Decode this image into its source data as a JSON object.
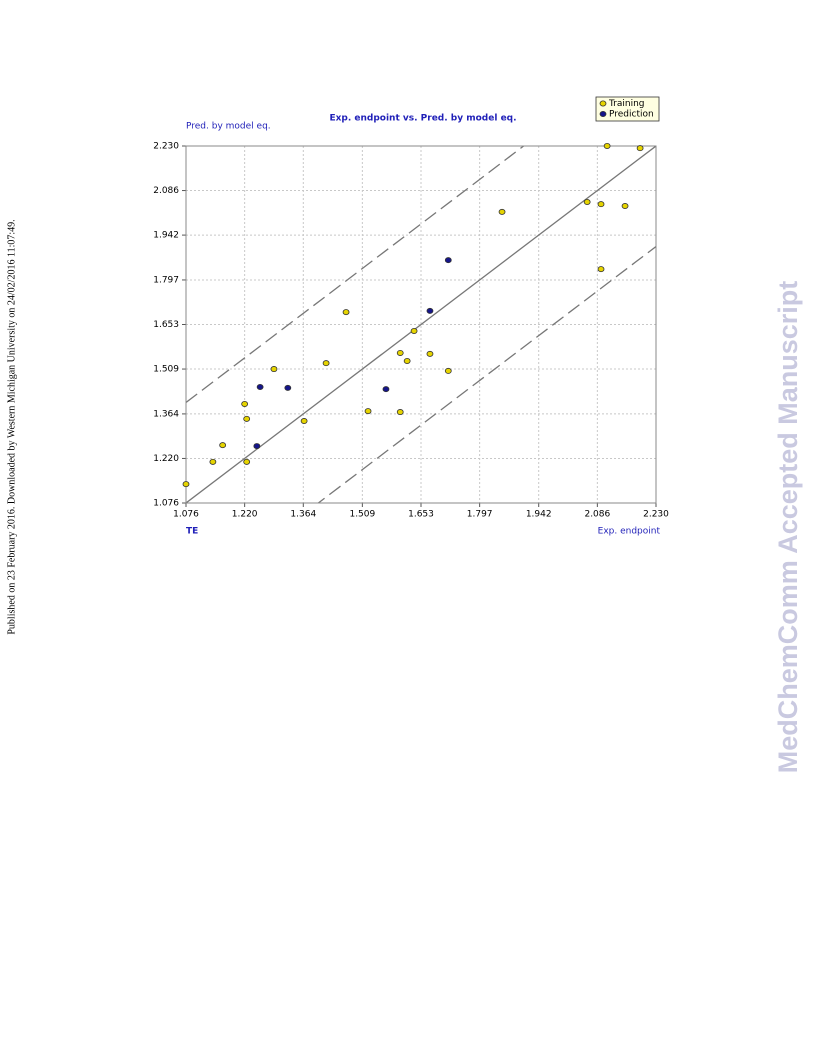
{
  "side_note": "Published on 23 February 2016. Downloaded by Western Michigan University on 24/02/2016 11:07:49.",
  "watermark": "MedChemComm Accepted Manuscript",
  "chart_data": {
    "type": "scatter",
    "title": "Exp. endpoint vs. Pred. by model eq.",
    "y_label": "Pred. by model eq.",
    "x_label": "Exp. endpoint",
    "corner_label": "TE",
    "xlim": [
      1.076,
      2.23
    ],
    "ylim": [
      1.076,
      2.23
    ],
    "xticks": [
      1.076,
      {
        "value": 1.22,
        "label": "1.220"
      },
      1.364,
      1.509,
      1.653,
      1.797,
      1.942,
      2.086,
      {
        "value": 2.23,
        "label": "2.230"
      }
    ],
    "yticks": [
      1.076,
      {
        "value": 1.22,
        "label": "1.220"
      },
      1.364,
      1.509,
      1.653,
      1.797,
      1.942,
      2.086,
      {
        "value": 2.23,
        "label": "2.230"
      }
    ],
    "grid": true,
    "legend": "top-right",
    "diagonal_offset": 0.325,
    "series": [
      {
        "name": "Training",
        "color": "#e6d400",
        "x": [
          1.076,
          1.142,
          1.166,
          1.22,
          1.225,
          1.225,
          1.292,
          1.366,
          1.42,
          1.469,
          1.523,
          1.602,
          1.602,
          1.619,
          1.636,
          1.675,
          1.72,
          1.852,
          2.061,
          2.095,
          2.095,
          2.11,
          2.154,
          2.191
        ],
        "values": [
          1.137,
          1.209,
          1.263,
          1.396,
          1.348,
          1.209,
          1.509,
          1.341,
          1.528,
          1.693,
          1.373,
          1.561,
          1.37,
          1.535,
          1.632,
          1.558,
          1.503,
          2.017,
          2.049,
          2.042,
          1.832,
          2.23,
          2.036,
          2.223
        ]
      },
      {
        "name": "Prediction",
        "color": "#15158a",
        "x": [
          1.258,
          1.326,
          1.25,
          1.567,
          1.675,
          1.72
        ],
        "values": [
          1.451,
          1.448,
          1.26,
          1.444,
          1.697,
          1.861
        ]
      }
    ]
  }
}
